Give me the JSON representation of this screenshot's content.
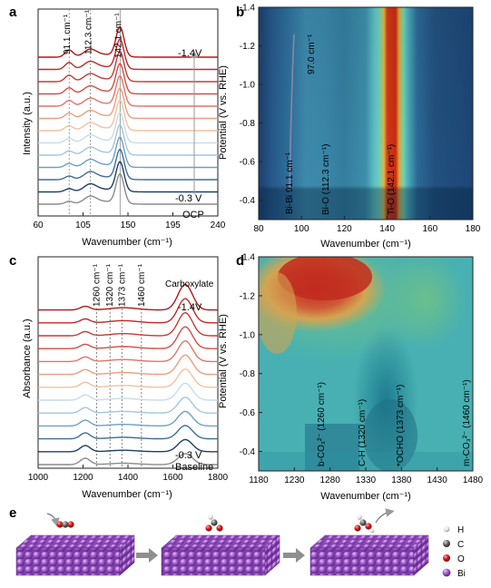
{
  "panel_labels": {
    "a": "a",
    "b": "b",
    "c": "c",
    "d": "d",
    "e": "e"
  },
  "chart_data": [
    {
      "panel": "a",
      "type": "line",
      "xlabel": "Wavenumber (cm⁻¹)",
      "ylabel": "Intensity (a.u.)",
      "xlim": [
        60,
        240
      ],
      "xticks": [
        "60",
        "105",
        "150",
        "195",
        "240"
      ],
      "peaks": [
        "91.1 cm⁻¹",
        "112.3 cm⁻¹",
        "142.1 cm⁻¹"
      ],
      "peak_positions": [
        91.1,
        112.3,
        142.1
      ],
      "labels": {
        "top": "-1.4V",
        "bottom": "-0.3 V",
        "ocp": "OCP"
      },
      "series_colors": [
        "#b01818",
        "#c0292a",
        "#c83b35",
        "#d34e45",
        "#e0756b",
        "#ec9e7d",
        "#f3c19e",
        "#c9dbe8",
        "#a3c6de",
        "#6e9fc4",
        "#3f6d9a",
        "#1e3f66",
        "#8a8a8a"
      ]
    },
    {
      "panel": "b",
      "type": "heatmap",
      "xlabel": "Wavenumber (cm⁻¹)",
      "ylabel": "Potential (V vs. RHE)",
      "xlim": [
        80,
        180
      ],
      "ylim": [
        -0.3,
        -1.4
      ],
      "xticks": [
        "80",
        "100",
        "120",
        "140",
        "160",
        "180"
      ],
      "yticks": [
        "-1.4",
        "-1.2",
        "-1.0",
        "-0.8",
        "-0.6",
        "-0.4"
      ],
      "annotations": [
        "97.0 cm⁻¹",
        "91.1 cm⁻¹",
        "Bi-Bi",
        "Bi-O (112.3 cm⁻¹)",
        "Ti-O (142.1 cm⁻¹)"
      ]
    },
    {
      "panel": "c",
      "type": "line",
      "xlabel": "Wavenumber (cm⁻¹)",
      "ylabel": "Absorbance (a.u.)",
      "xlim": [
        1000,
        1800
      ],
      "xticks": [
        "1000",
        "1200",
        "1400",
        "1600",
        "1800"
      ],
      "peaks": [
        "1260 cm⁻¹",
        "1320 cm⁻¹",
        "1373 cm⁻¹",
        "1460 cm⁻¹"
      ],
      "peak_positions": [
        1260,
        1320,
        1373,
        1460
      ],
      "carboxylate_label": "Carboxylate",
      "labels": {
        "top": "-1.4V",
        "bottom": "-0.3 V",
        "baseline": "Baseline"
      },
      "series_colors": [
        "#b01818",
        "#c0292a",
        "#c83b35",
        "#d34e45",
        "#e0756b",
        "#ec9e7d",
        "#f3c19e",
        "#c9dbe8",
        "#a3c6de",
        "#6e9fc4",
        "#3f6d9a",
        "#1e3f66",
        "#8a8a8a"
      ]
    },
    {
      "panel": "d",
      "type": "heatmap",
      "xlabel": "Wavenumber (cm⁻¹)",
      "ylabel": "Potential (V vs. RHE)",
      "xlim": [
        1180,
        1480
      ],
      "ylim": [
        -0.3,
        -1.4
      ],
      "xticks": [
        "1180",
        "1230",
        "1280",
        "1330",
        "1380",
        "1430",
        "1480"
      ],
      "yticks": [
        "-1.4",
        "-1.2",
        "-1.0",
        "-0.8",
        "-0.6",
        "-0.4"
      ],
      "annotations": [
        "b-CO₃²⁻ (1260 cm⁻¹)",
        "C-H (1320 cm⁻¹)",
        "*OCHO (1373 cm⁻¹)",
        "m-CO₃²⁻ (1460 cm⁻¹)"
      ]
    }
  ],
  "panel_e": {
    "legend": [
      {
        "label": "H",
        "color": "#ececec"
      },
      {
        "label": "C",
        "color": "#6a6a6a"
      },
      {
        "label": "O",
        "color": "#d7191c"
      },
      {
        "label": "Bi",
        "color": "#a45ed0"
      }
    ],
    "slab_color": "#a55fcf"
  }
}
